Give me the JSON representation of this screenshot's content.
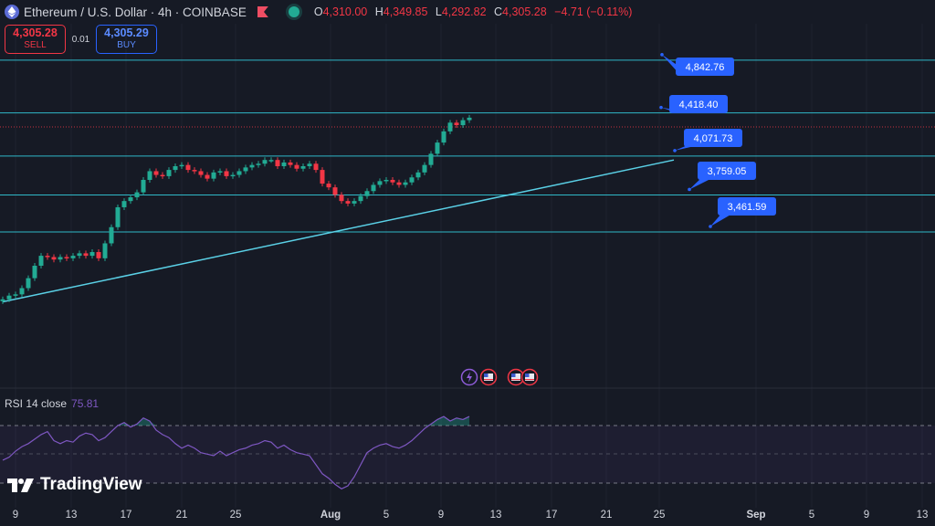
{
  "header": {
    "title": "Ethereum / U.S. Dollar · 4h · COINBASE",
    "ohlc": [
      {
        "key": "O",
        "value": "4,310.00"
      },
      {
        "key": "H",
        "value": "4,349.85"
      },
      {
        "key": "L",
        "value": "4,292.82"
      },
      {
        "key": "C",
        "value": "4,305.28"
      },
      {
        "key": "",
        "value": "−4.71 (−0.11%)"
      }
    ]
  },
  "trade": {
    "sell_price": "4,305.28",
    "sell_label": "SELL",
    "spread": "0.01",
    "buy_price": "4,305.29",
    "buy_label": "BUY"
  },
  "rsi": {
    "label": "RSI 14 close",
    "value": "75.81"
  },
  "brand": {
    "name": "TradingView"
  },
  "colors": {
    "up": "#22ab94",
    "down": "#f23645",
    "level": "#2fb8c8",
    "rsi": "#7e57c2",
    "callout": "#2962ff"
  },
  "chart_data": {
    "type": "candlestick",
    "levels": [
      4842.76,
      4418.4,
      4071.73,
      3759.05,
      3461.59
    ],
    "level_labels": [
      "4,842.76",
      "4,418.40",
      "4,071.73",
      "3,759.05",
      "3,461.59"
    ],
    "trendline": [
      {
        "x": 0,
        "y": 2900
      },
      {
        "x": 105,
        "y": 4040
      }
    ],
    "current_price": 4305.28,
    "x_ticks": [
      "9",
      "13",
      "17",
      "21",
      "25",
      "Aug",
      "5",
      "9",
      "13",
      "17",
      "21",
      "25",
      "Sep",
      "5",
      "9",
      "13"
    ],
    "close": [
      2920,
      2950,
      2960,
      3010,
      3090,
      3190,
      3270,
      3260,
      3240,
      3260,
      3250,
      3270,
      3290,
      3270,
      3300,
      3250,
      3370,
      3500,
      3660,
      3710,
      3740,
      3780,
      3880,
      3950,
      3920,
      3910,
      3960,
      3990,
      4000,
      3960,
      3950,
      3920,
      3890,
      3940,
      3950,
      3910,
      3920,
      3950,
      3980,
      4000,
      4010,
      4040,
      4040,
      3990,
      4020,
      4000,
      3970,
      3990,
      4010,
      3960,
      3850,
      3820,
      3760,
      3710,
      3690,
      3710,
      3750,
      3790,
      3840,
      3870,
      3880,
      3860,
      3840,
      3860,
      3900,
      3940,
      4000,
      4090,
      4180,
      4270,
      4340,
      4320,
      4360,
      4380
    ]
  },
  "rsi_data": [
    47,
    49,
    53,
    56,
    58,
    61,
    64,
    66,
    60,
    58,
    60,
    59,
    63,
    65,
    64,
    60,
    62,
    66,
    70,
    72,
    69,
    71,
    75,
    73,
    67,
    64,
    62,
    58,
    55,
    57,
    55,
    52,
    51,
    50,
    53,
    50,
    52,
    54,
    55,
    57,
    58,
    60,
    59,
    55,
    57,
    54,
    52,
    51,
    50,
    44,
    38,
    35,
    31,
    28,
    30,
    36,
    44,
    52,
    55,
    57,
    58,
    56,
    55,
    57,
    60,
    64,
    68,
    71,
    74,
    76,
    73,
    75,
    74,
    76
  ]
}
